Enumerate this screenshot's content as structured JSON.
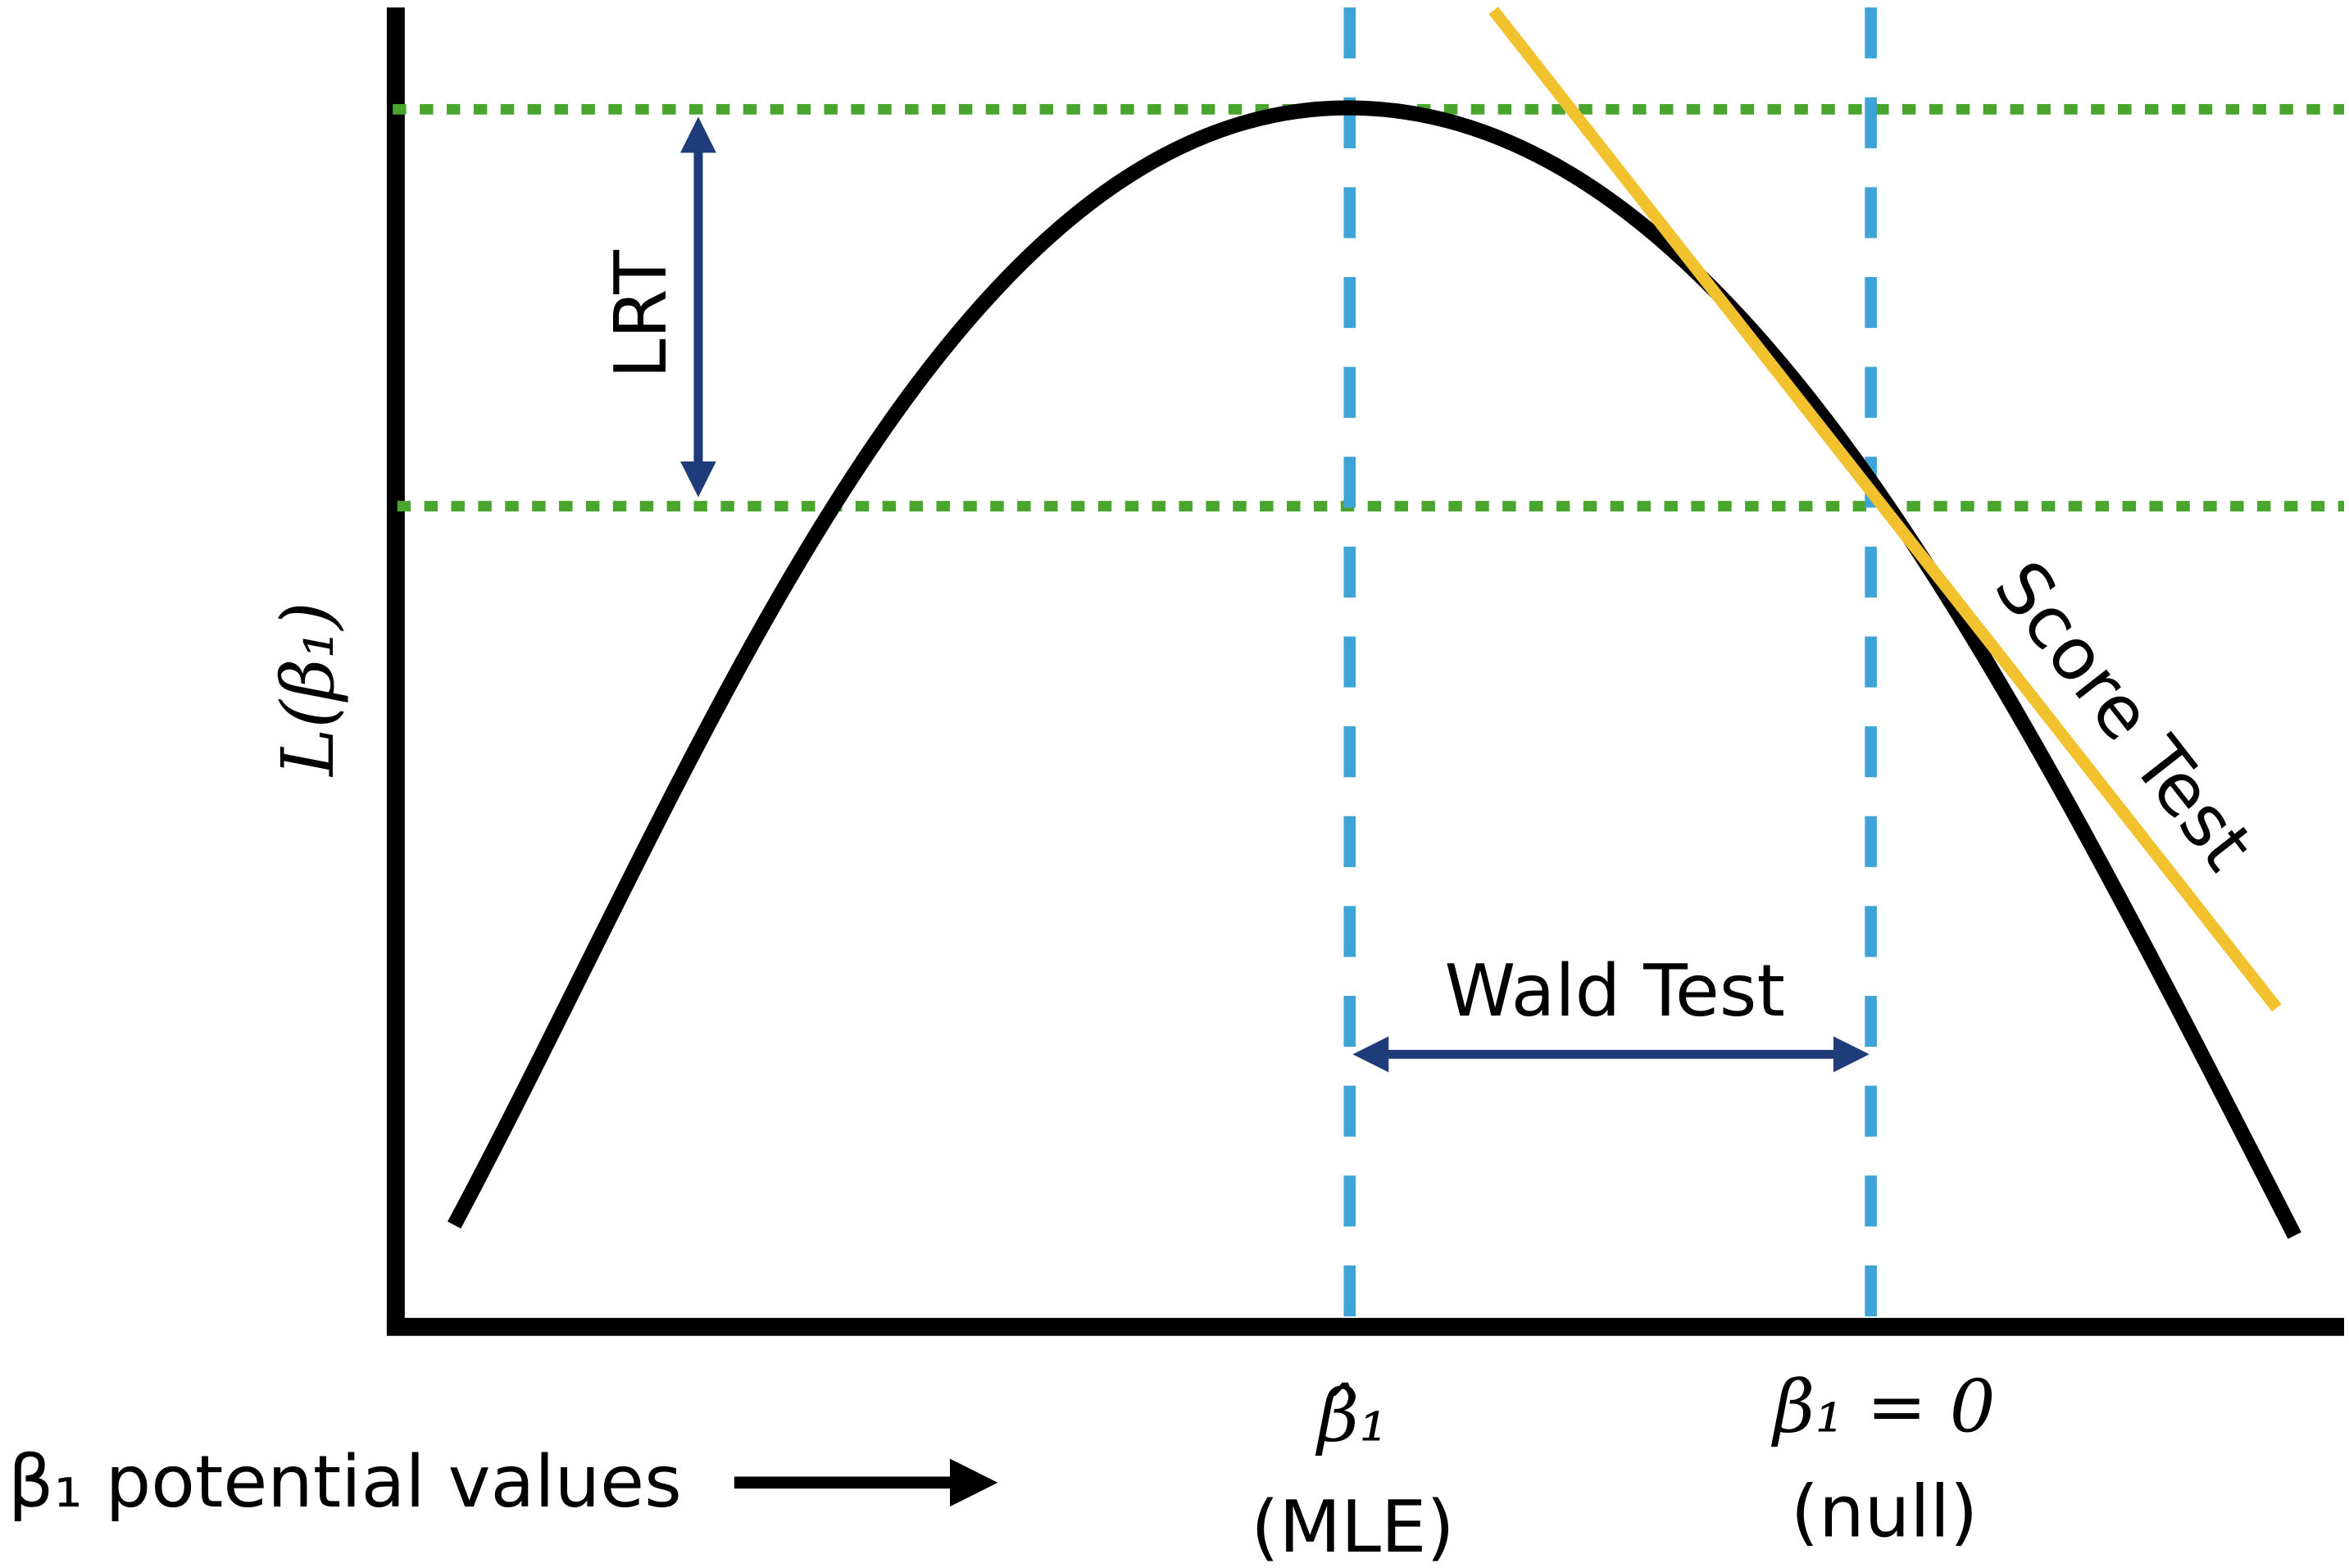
{
  "labels": {
    "lrt": "LRT",
    "wald": "Wald Test",
    "score": "Score Test",
    "y_axis": "L(β₁)",
    "mle_symbol": "β̂₁",
    "mle_note": "(MLE)",
    "null_symbol": "β₁ = 0",
    "null_note": "(null)",
    "x_axis": "β₁ potential values"
  }
}
